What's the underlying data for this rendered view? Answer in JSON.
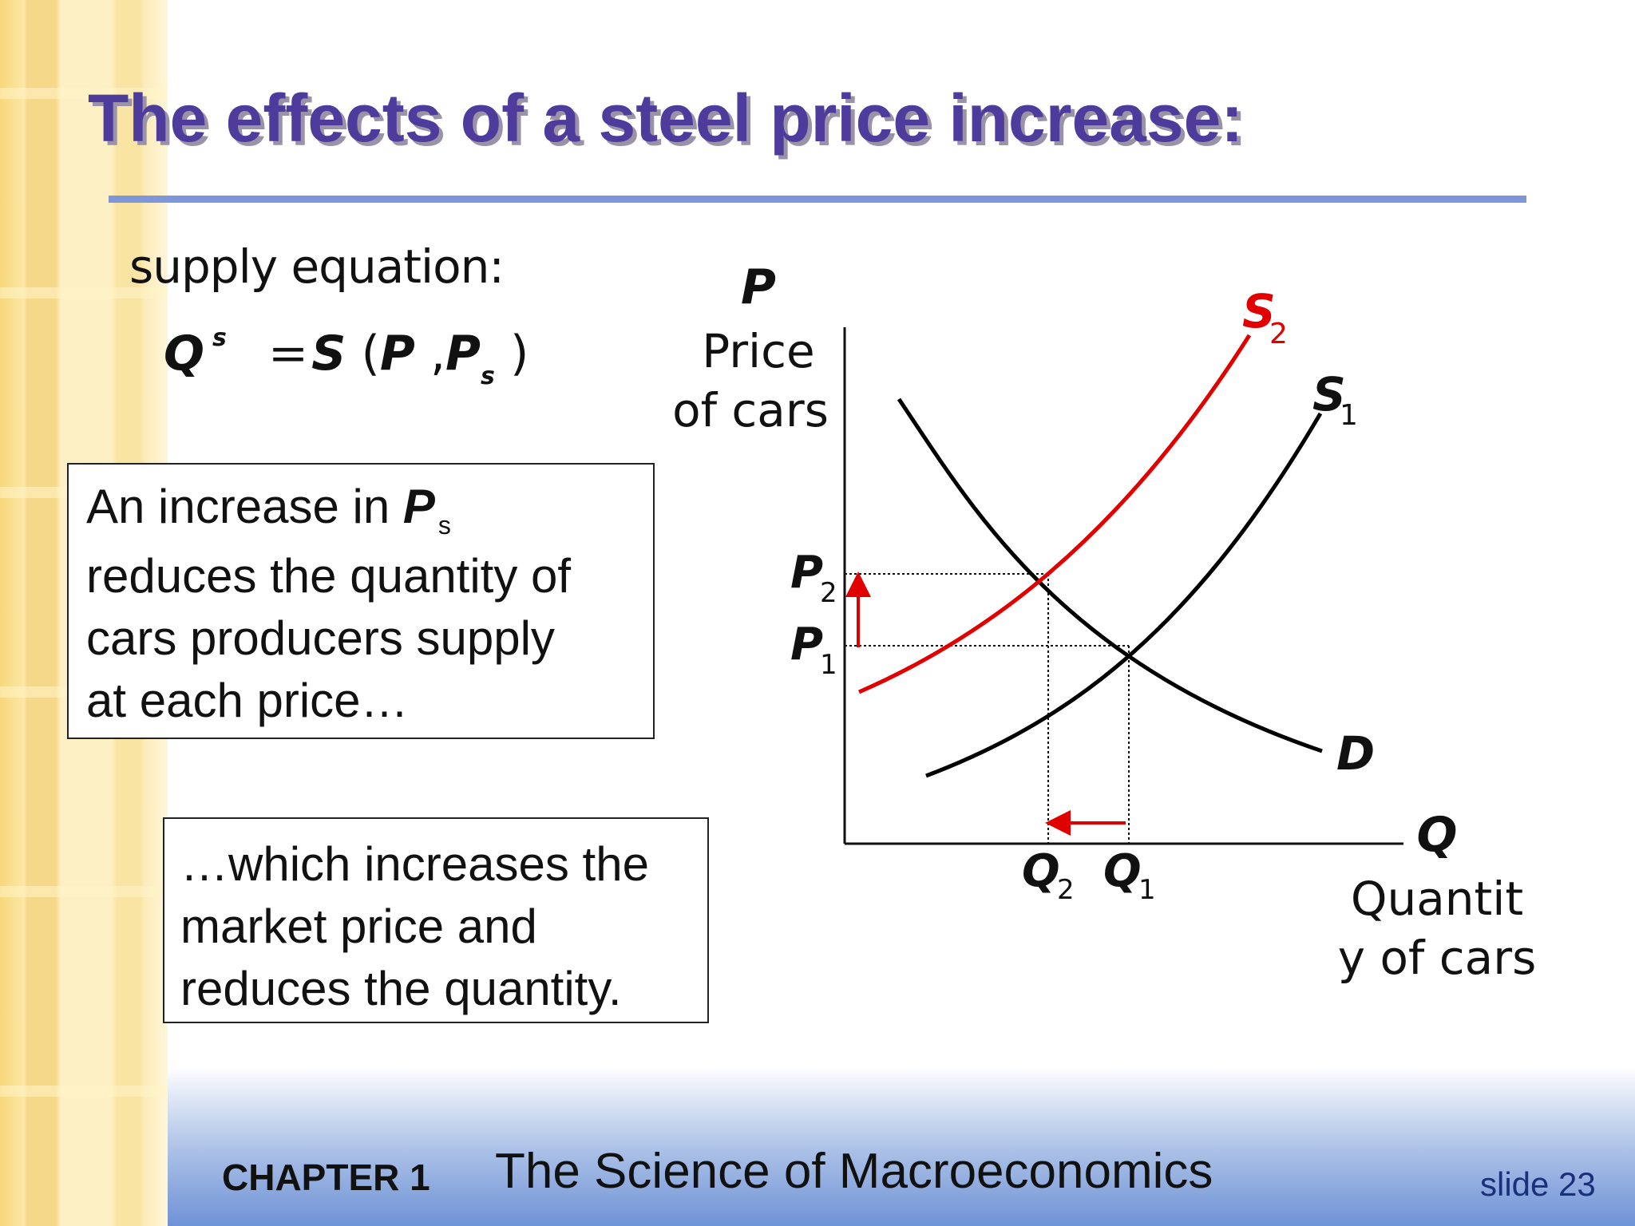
{
  "title": "The effects of a steel price increase:",
  "equation": {
    "label": "supply equation:",
    "Q": "Q",
    "sup": "s",
    "equals": "=",
    "S": "S",
    "open": "(",
    "P": "P",
    "comma": ",",
    "P2": "P",
    "sub": "s",
    "close": ")"
  },
  "box1": {
    "l1_pre": "An increase in ",
    "l1_P": "P",
    "l1_sub": "s",
    "l2": "reduces the quantity of",
    "l3": "cars producers supply",
    "l4": "at each price…"
  },
  "box2": {
    "l1": "…which increases the",
    "l2": "market price and",
    "l3": "reduces the quantity."
  },
  "diagram": {
    "y_axis_symbol": "P",
    "y_axis_label_line1": "Price",
    "y_axis_label_line2": "of cars",
    "x_axis_symbol": "Q",
    "x_axis_label_line1": "Quantit",
    "x_axis_label_line2": "y of cars",
    "curves": {
      "S1": {
        "letter": "S",
        "sub": "1",
        "color": "#000000"
      },
      "S2": {
        "letter": "S",
        "sub": "2",
        "color": "#e00000"
      },
      "D": {
        "letter": "D",
        "color": "#000000"
      }
    },
    "price_levels": {
      "P1": {
        "letter": "P",
        "sub": "1"
      },
      "P2": {
        "letter": "P",
        "sub": "2"
      }
    },
    "quantity_levels": {
      "Q1": {
        "letter": "Q",
        "sub": "1"
      },
      "Q2": {
        "letter": "Q",
        "sub": "2"
      }
    },
    "arrow_color": "#e00000"
  },
  "footer": {
    "chapter": "CHAPTER 1",
    "book": "The Science of Macroeconomics",
    "slide": "slide 23"
  }
}
